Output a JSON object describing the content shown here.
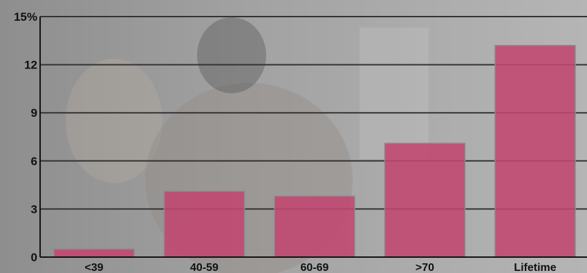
{
  "chart_data": {
    "type": "bar",
    "categories": [
      "<39",
      "40-59",
      "60-69",
      ">70",
      "Lifetime"
    ],
    "values": [
      0.5,
      4.1,
      3.8,
      7.1,
      13.2
    ],
    "ylim": [
      0,
      15
    ],
    "yticks": [
      0,
      3,
      6,
      9,
      12,
      15
    ],
    "ytick_labels": [
      "0",
      "3",
      "6",
      "9",
      "12",
      "15%"
    ],
    "grid": true,
    "title": "",
    "xlabel": "",
    "ylabel": "",
    "colors": {
      "bar": "#c2456f",
      "bar_edge": "#8a8a8a",
      "grid": "#333333",
      "background_photo": "#9c9c9c"
    }
  }
}
